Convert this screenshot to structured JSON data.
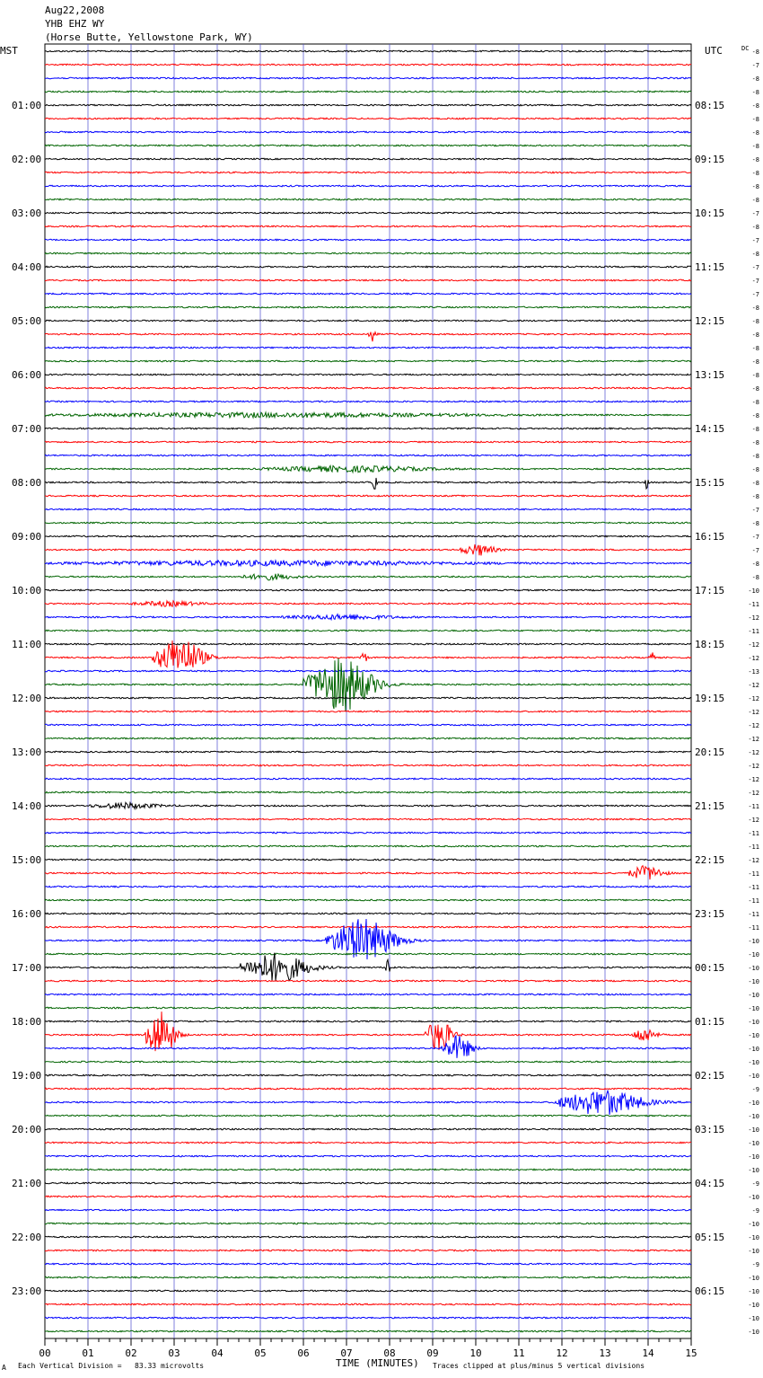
{
  "header": {
    "date": "Aug22,2008",
    "station": "YHB EHZ WY",
    "location": "(Horse Butte, Yellowstone Park, WY)"
  },
  "left_tz": "MST",
  "right_tz": "UTC",
  "dc_label": "DC",
  "footer": {
    "scale_text": "Each Vertical Division =   83.33 microvolts",
    "clip_text": "Traces clipped at plus/minus 5 vertical divisions",
    "corner_mark": "A"
  },
  "colors": {
    "black": "#000000",
    "red": "#ff0000",
    "blue": "#0000ff",
    "green": "#006400",
    "grid": "#4a4ad0"
  },
  "chart_data": {
    "type": "line",
    "xlabel": "TIME (MINUTES)",
    "xlim": [
      0,
      15
    ],
    "x_ticks": [
      "00",
      "01",
      "02",
      "03",
      "04",
      "05",
      "06",
      "07",
      "08",
      "09",
      "10",
      "11",
      "12",
      "13",
      "14",
      "15"
    ],
    "trace_minutes": 15,
    "row_count": 96,
    "color_cycle": [
      "black",
      "red",
      "blue",
      "green"
    ],
    "hour_labels_left": [
      "01:00",
      "02:00",
      "03:00",
      "04:00",
      "05:00",
      "06:00",
      "07:00",
      "08:00",
      "09:00",
      "10:00",
      "11:00",
      "12:00",
      "13:00",
      "14:00",
      "15:00",
      "16:00",
      "17:00",
      "18:00",
      "19:00",
      "20:00",
      "21:00",
      "22:00",
      "23:00"
    ],
    "hour_labels_right": [
      "08:15",
      "09:15",
      "10:15",
      "11:15",
      "12:15",
      "13:15",
      "14:15",
      "15:15",
      "16:15",
      "17:15",
      "18:15",
      "19:15",
      "20:15",
      "21:15",
      "22:15",
      "23:15",
      "00:15",
      "01:15",
      "02:15",
      "03:15",
      "04:15",
      "05:15",
      "06:15"
    ],
    "dc_offsets": [
      -8,
      -7,
      -8,
      -8,
      -8,
      -8,
      -8,
      -8,
      -8,
      -8,
      -8,
      -8,
      -7,
      -8,
      -7,
      -8,
      -7,
      -7,
      -7,
      -8,
      -8,
      -8,
      -8,
      -8,
      -8,
      -8,
      -8,
      -8,
      -8,
      -8,
      -8,
      -8,
      -8,
      -8,
      -7,
      -8,
      -7,
      -7,
      -8,
      -8,
      -10,
      -11,
      -12,
      -11,
      -12,
      -12,
      -13,
      -12,
      -12,
      -12,
      -12,
      -12,
      -12,
      -12,
      -12,
      -12,
      -11,
      -12,
      -11,
      -11,
      -12,
      -11,
      -11,
      -11,
      -11,
      -11,
      -10,
      -10,
      -10,
      -10,
      -10,
      -10,
      -10,
      -10,
      -10,
      -10,
      -10,
      -9,
      -10,
      -10,
      -10,
      -10,
      -10,
      -10,
      -9,
      -10,
      -9,
      -10,
      -10,
      -10,
      -9,
      -10,
      -10,
      -10,
      -10,
      -10
    ],
    "events": [
      {
        "row": 21,
        "start": 7.5,
        "end": 7.8,
        "amp": 8
      },
      {
        "row": 27,
        "start": 0,
        "end": 15,
        "amp": 2.2
      },
      {
        "row": 31,
        "start": 5,
        "end": 11,
        "amp": 3
      },
      {
        "row": 32,
        "start": 7.6,
        "end": 7.75,
        "amp": 10
      },
      {
        "row": 32,
        "start": 13.9,
        "end": 14.05,
        "amp": 8
      },
      {
        "row": 37,
        "start": 9.6,
        "end": 10.9,
        "amp": 6
      },
      {
        "row": 38,
        "start": 0,
        "end": 15,
        "amp": 2.5
      },
      {
        "row": 39,
        "start": 4.5,
        "end": 6.5,
        "amp": 3
      },
      {
        "row": 41,
        "start": 2,
        "end": 4.5,
        "amp": 2.5
      },
      {
        "row": 42,
        "start": 5.5,
        "end": 9.5,
        "amp": 2.5
      },
      {
        "row": 45,
        "start": 2.5,
        "end": 4.3,
        "amp": 22
      },
      {
        "row": 45,
        "start": 7.3,
        "end": 7.6,
        "amp": 5
      },
      {
        "row": 45,
        "start": 14,
        "end": 14.2,
        "amp": 8
      },
      {
        "row": 47,
        "start": 6,
        "end": 8.5,
        "amp": 30
      },
      {
        "row": 56,
        "start": 1,
        "end": 3.5,
        "amp": 3
      },
      {
        "row": 61,
        "start": 13.5,
        "end": 14.8,
        "amp": 8
      },
      {
        "row": 66,
        "start": 6.5,
        "end": 9,
        "amp": 24
      },
      {
        "row": 68,
        "start": 4.5,
        "end": 7,
        "amp": 16
      },
      {
        "row": 68,
        "start": 7.9,
        "end": 8.05,
        "amp": 20
      },
      {
        "row": 73,
        "start": 2.3,
        "end": 3.4,
        "amp": 28
      },
      {
        "row": 73,
        "start": 8.8,
        "end": 9.8,
        "amp": 18
      },
      {
        "row": 73,
        "start": 13.6,
        "end": 14.5,
        "amp": 8
      },
      {
        "row": 74,
        "start": 9.2,
        "end": 10.3,
        "amp": 14
      },
      {
        "row": 78,
        "start": 11.8,
        "end": 15,
        "amp": 14
      }
    ]
  }
}
